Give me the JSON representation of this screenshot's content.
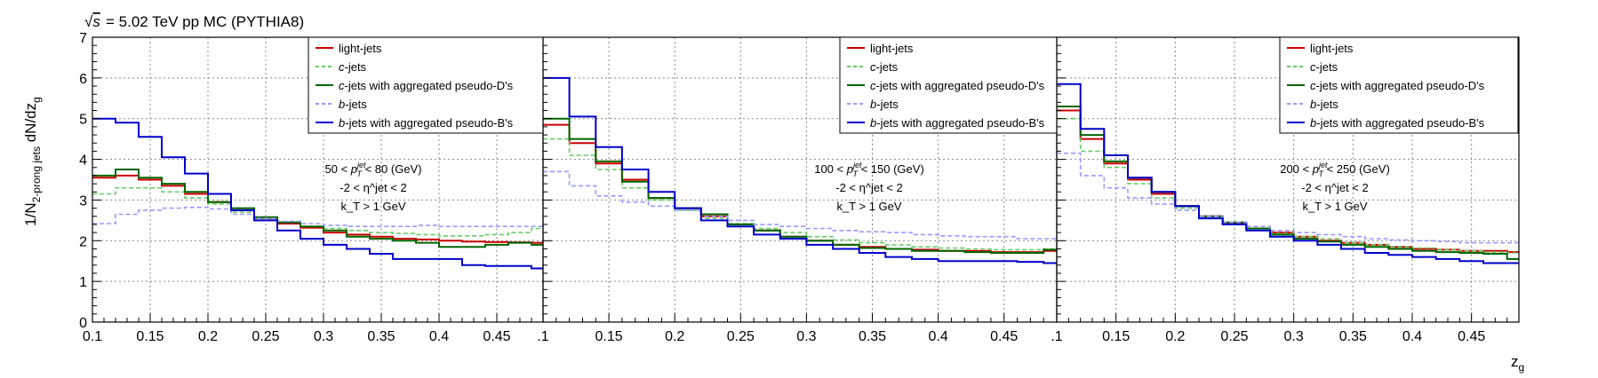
{
  "figure": {
    "header": "= 5.02 TeV pp MC (PYTHIA8)",
    "ylabel_main": "1/N",
    "ylabel_sub": "2-prong jets",
    "ylabel_tail": " dN/dz",
    "ylabel_tail_sub": "g",
    "xlabel_main": "z",
    "xlabel_sub": "g"
  },
  "legend": [
    {
      "key": "light",
      "label": "light-jets",
      "color": "#cc0000",
      "dash": "solid"
    },
    {
      "key": "c",
      "label": "c-jets",
      "color": "#66cc66",
      "dash": "dashed"
    },
    {
      "key": "cagg",
      "label": "c-jets with aggregated pseudo-D's",
      "color": "#006600",
      "dash": "solid"
    },
    {
      "key": "b",
      "label": "b-jets",
      "color": "#9999ff",
      "dash": "dashed"
    },
    {
      "key": "bagg",
      "label": "b-jets with aggregated pseudo-B's",
      "color": "#0000cc",
      "dash": "solid"
    }
  ],
  "chart_data": [
    {
      "type": "line",
      "panel": "left",
      "annotation": [
        "50 < p_T^jet < 80 (GeV)",
        "-2 < η^jet < 2",
        "k_T > 1 GeV"
      ],
      "xlim": [
        0.1,
        0.49
      ],
      "ylim": [
        0,
        7
      ],
      "grid": true,
      "xticks": [
        "0.1",
        "0.15",
        "0.2",
        "0.25",
        "0.3",
        "0.35",
        "0.4",
        "0.45"
      ],
      "yticks": [
        "0",
        "1",
        "2",
        "3",
        "4",
        "5",
        "6",
        "7"
      ],
      "bin_edges": [
        0.1,
        0.12,
        0.14,
        0.16,
        0.18,
        0.2,
        0.22,
        0.24,
        0.26,
        0.28,
        0.3,
        0.32,
        0.34,
        0.36,
        0.38,
        0.4,
        0.42,
        0.44,
        0.46,
        0.48,
        0.49
      ],
      "series": [
        {
          "key": "light",
          "values": [
            3.55,
            3.6,
            3.5,
            3.35,
            3.15,
            2.95,
            2.75,
            2.55,
            2.42,
            2.32,
            2.2,
            2.15,
            2.1,
            2.05,
            2.03,
            2.0,
            1.98,
            1.97,
            1.96,
            1.95
          ]
        },
        {
          "key": "c",
          "values": [
            3.15,
            3.3,
            3.3,
            3.2,
            3.05,
            2.9,
            2.7,
            2.55,
            2.45,
            2.35,
            2.3,
            2.25,
            2.2,
            2.18,
            2.15,
            2.12,
            2.12,
            2.15,
            2.2,
            2.3
          ]
        },
        {
          "key": "cagg",
          "values": [
            3.6,
            3.75,
            3.55,
            3.4,
            3.2,
            2.95,
            2.8,
            2.58,
            2.45,
            2.35,
            2.25,
            2.1,
            2.05,
            2.0,
            1.95,
            1.85,
            1.85,
            1.9,
            1.95,
            1.9
          ]
        },
        {
          "key": "b",
          "values": [
            2.42,
            2.65,
            2.75,
            2.8,
            2.82,
            2.78,
            2.65,
            2.55,
            2.48,
            2.42,
            2.38,
            2.35,
            2.35,
            2.35,
            2.38,
            2.35,
            2.35,
            2.35,
            2.35,
            2.35
          ]
        },
        {
          "key": "bagg",
          "values": [
            5.0,
            4.9,
            4.55,
            4.05,
            3.65,
            3.15,
            2.75,
            2.5,
            2.25,
            2.05,
            1.9,
            1.8,
            1.68,
            1.55,
            1.55,
            1.55,
            1.4,
            1.38,
            1.38,
            1.32
          ]
        }
      ]
    },
    {
      "type": "line",
      "panel": "middle",
      "annotation": [
        "100 < p_T^jet < 150 (GeV)",
        "-2 < η^jet < 2",
        "k_T > 1 GeV"
      ],
      "xlim": [
        0.1,
        0.49
      ],
      "ylim": [
        0,
        7
      ],
      "grid": true,
      "xticks": [
        ".1",
        "0.15",
        "0.2",
        "0.25",
        "0.3",
        "0.35",
        "0.4",
        "0.45"
      ],
      "bin_edges": [
        0.1,
        0.12,
        0.14,
        0.16,
        0.18,
        0.2,
        0.22,
        0.24,
        0.26,
        0.28,
        0.3,
        0.32,
        0.34,
        0.36,
        0.38,
        0.4,
        0.42,
        0.44,
        0.46,
        0.48,
        0.49
      ],
      "series": [
        {
          "key": "light",
          "values": [
            4.85,
            4.4,
            3.9,
            3.5,
            3.05,
            2.8,
            2.6,
            2.4,
            2.25,
            2.1,
            2.0,
            1.9,
            1.85,
            1.8,
            1.78,
            1.75,
            1.75,
            1.72,
            1.72,
            1.75
          ]
        },
        {
          "key": "c",
          "values": [
            4.5,
            4.1,
            3.75,
            3.3,
            3.0,
            2.75,
            2.55,
            2.42,
            2.3,
            2.2,
            2.1,
            2.02,
            1.95,
            1.9,
            1.85,
            1.82,
            1.8,
            1.78,
            1.78,
            1.8
          ]
        },
        {
          "key": "cagg",
          "values": [
            5.0,
            4.5,
            3.95,
            3.45,
            3.05,
            2.8,
            2.65,
            2.4,
            2.25,
            2.1,
            2.0,
            1.9,
            1.82,
            1.8,
            1.75,
            1.75,
            1.72,
            1.7,
            1.7,
            1.78
          ]
        },
        {
          "key": "b",
          "values": [
            3.7,
            3.35,
            3.1,
            2.95,
            2.85,
            2.75,
            2.6,
            2.5,
            2.4,
            2.35,
            2.3,
            2.25,
            2.22,
            2.2,
            2.15,
            2.12,
            2.1,
            2.1,
            2.05,
            2.05
          ]
        },
        {
          "key": "bagg",
          "values": [
            6.0,
            5.05,
            4.3,
            3.75,
            3.2,
            2.8,
            2.5,
            2.35,
            2.15,
            2.05,
            1.9,
            1.8,
            1.7,
            1.6,
            1.55,
            1.5,
            1.5,
            1.5,
            1.48,
            1.45
          ]
        }
      ]
    },
    {
      "type": "line",
      "panel": "right",
      "annotation": [
        "200 < p_T^jet < 250 (GeV)",
        "-2 < η^jet < 2",
        "k_T > 1 GeV"
      ],
      "xlim": [
        0.1,
        0.49
      ],
      "ylim": [
        0,
        7
      ],
      "grid": true,
      "xticks": [
        ".1",
        "0.15",
        "0.2",
        "0.25",
        "0.3",
        "0.35",
        "0.4",
        "0.45"
      ],
      "bin_edges": [
        0.1,
        0.12,
        0.14,
        0.16,
        0.18,
        0.2,
        0.22,
        0.24,
        0.26,
        0.28,
        0.3,
        0.32,
        0.34,
        0.36,
        0.38,
        0.4,
        0.42,
        0.44,
        0.46,
        0.48,
        0.49
      ],
      "series": [
        {
          "key": "light",
          "values": [
            5.2,
            4.5,
            3.9,
            3.5,
            3.15,
            2.85,
            2.6,
            2.42,
            2.3,
            2.2,
            2.1,
            2.0,
            1.95,
            1.9,
            1.85,
            1.8,
            1.78,
            1.75,
            1.75,
            1.72
          ]
        },
        {
          "key": "c",
          "values": [
            5.0,
            4.2,
            3.8,
            3.4,
            3.05,
            2.8,
            2.55,
            2.4,
            2.3,
            2.18,
            2.1,
            2.05,
            1.95,
            1.9,
            1.85,
            1.82,
            1.78,
            1.75,
            1.72,
            1.7
          ]
        },
        {
          "key": "cagg",
          "values": [
            5.3,
            4.6,
            3.95,
            3.55,
            3.2,
            2.85,
            2.6,
            2.45,
            2.3,
            2.15,
            2.05,
            1.98,
            1.9,
            1.85,
            1.8,
            1.75,
            1.72,
            1.7,
            1.68,
            1.55
          ]
        },
        {
          "key": "b",
          "values": [
            4.15,
            3.6,
            3.3,
            3.05,
            2.9,
            2.75,
            2.6,
            2.45,
            2.35,
            2.25,
            2.2,
            2.15,
            2.1,
            2.05,
            2.02,
            2.0,
            1.98,
            1.95,
            1.95,
            1.95
          ]
        },
        {
          "key": "bagg",
          "values": [
            5.85,
            4.75,
            4.1,
            3.55,
            3.2,
            2.85,
            2.55,
            2.4,
            2.25,
            2.1,
            2.0,
            1.9,
            1.8,
            1.7,
            1.65,
            1.6,
            1.55,
            1.5,
            1.45,
            1.45
          ]
        }
      ]
    }
  ]
}
